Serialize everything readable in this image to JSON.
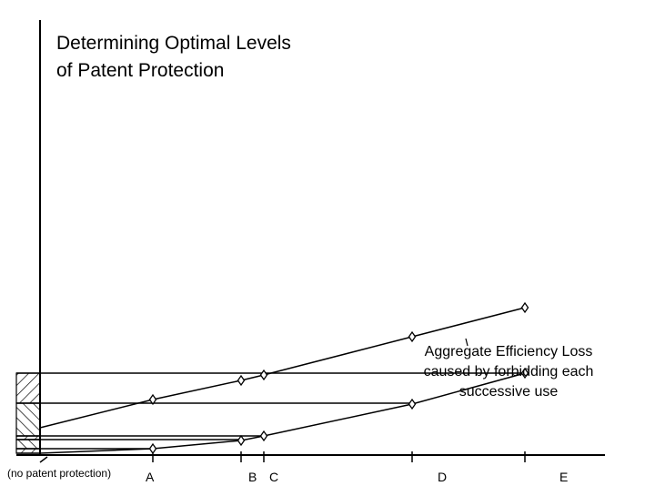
{
  "chart_data": {
    "type": "line",
    "title": [
      "Determining Optimal Levels",
      "of Patent Protection"
    ],
    "xlabel": "",
    "ylabel": "",
    "origin_label": "(no patent protection)",
    "x_tick_labels": [
      "A",
      "B",
      "C",
      "D",
      "E"
    ],
    "annotation": [
      "Aggregate Efficiency Loss",
      "caused by forbidding each",
      "successive use"
    ],
    "grid": false,
    "legend": "none",
    "colors": {
      "line": "#000000",
      "background": "#ffffff",
      "hatch": "#000000"
    },
    "series": [
      {
        "points": [
          [
            0,
            0.3
          ],
          [
            1,
            0.61
          ],
          [
            2,
            0.82
          ],
          [
            2.25,
            0.88
          ],
          [
            3.5,
            1.3
          ],
          [
            4.5,
            1.62
          ]
        ]
      },
      {
        "points": [
          [
            0,
            0.02
          ],
          [
            1,
            0.07
          ],
          [
            2,
            0.16
          ],
          [
            2.25,
            0.21
          ],
          [
            3.5,
            0.56
          ],
          [
            4.5,
            0.9
          ]
        ]
      }
    ],
    "reference_levels": [
      0.9,
      0.57,
      0.21,
      0.17,
      0.07,
      0.02
    ],
    "ylim": [
      0,
      2.74
    ],
    "xlim": [
      0,
      4.8
    ]
  }
}
